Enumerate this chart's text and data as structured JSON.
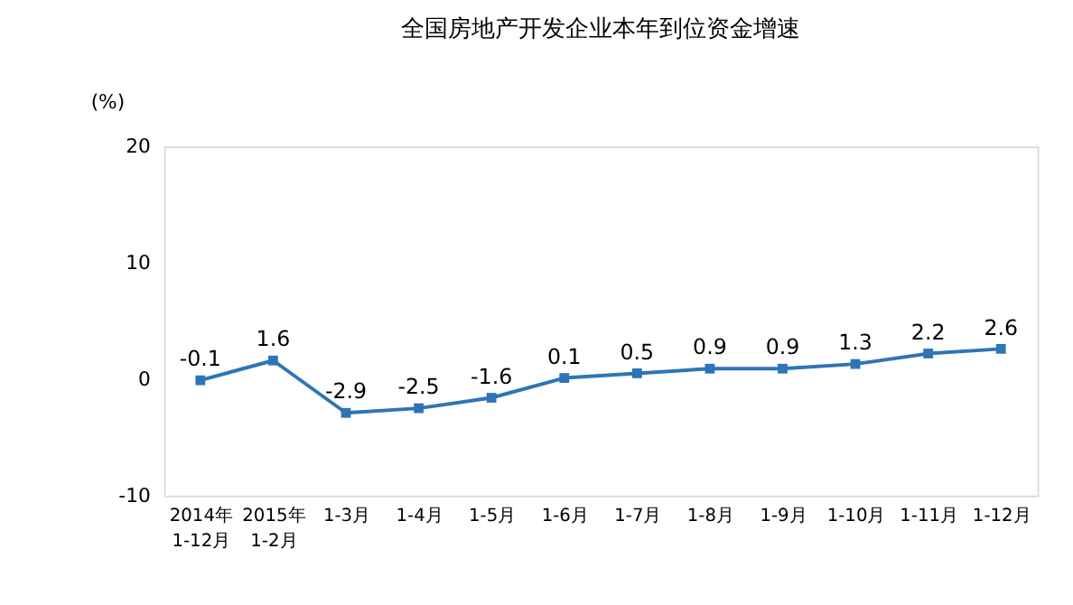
{
  "chart_data": {
    "type": "line",
    "title": "全国房地产开发企业本年到位资金增速",
    "ylabel": "(%)",
    "categories": [
      "2014年\n1-12月",
      "2015年\n1-2月",
      "1-3月",
      "1-4月",
      "1-5月",
      "1-6月",
      "1-7月",
      "1-8月",
      "1-9月",
      "1-10月",
      "1-11月",
      "1-12月"
    ],
    "series": [
      {
        "color": "#2e75b6",
        "values": [
          -0.1,
          1.6,
          -2.9,
          -2.5,
          -1.6,
          0.1,
          0.5,
          0.9,
          0.9,
          1.3,
          2.2,
          2.6
        ]
      }
    ],
    "ylim": [
      -10,
      20
    ],
    "yticks": [
      -10,
      0,
      10,
      20
    ],
    "grid": false,
    "marker": "square",
    "line_style": "solid",
    "data_labels": true
  }
}
